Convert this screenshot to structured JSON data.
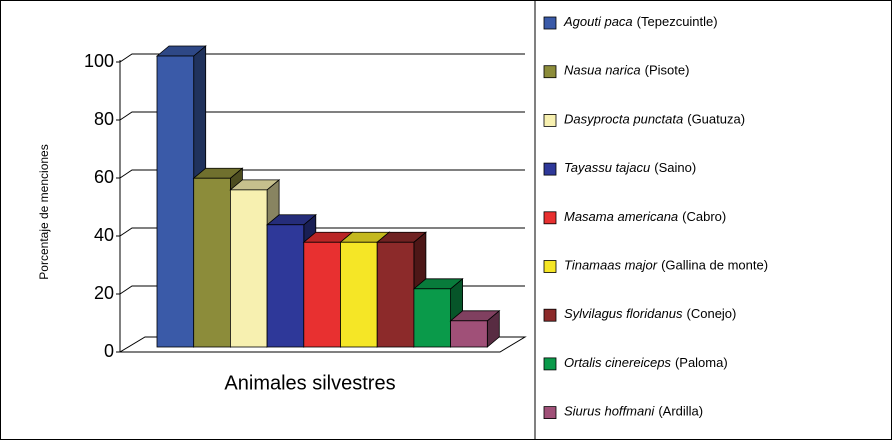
{
  "chart_data": {
    "type": "bar3d",
    "x_label": "Animales silvestres",
    "y_label": "Porcentaje de menciones",
    "ylim": [
      0,
      100
    ],
    "yticks": [
      0,
      20,
      40,
      60,
      80,
      100
    ],
    "grid": true,
    "series": [
      {
        "name": "Agouti paca",
        "common_name": "(Tepezcuintle)",
        "color": "#3a5aa8",
        "values": [
          100
        ]
      },
      {
        "name": "Nasua narica",
        "common_name": "(Pisote)",
        "color": "#8c8c3a",
        "values": [
          58
        ]
      },
      {
        "name": "Dasyprocta punctata",
        "common_name": "(Guatuza)",
        "color": "#f7f0b0",
        "values": [
          54
        ]
      },
      {
        "name": "Tayassu tajacu",
        "common_name": "(Saino)",
        "color": "#2e3899",
        "values": [
          42
        ]
      },
      {
        "name": "Masama americana",
        "common_name": "(Cabro)",
        "color": "#e83030",
        "values": [
          36
        ]
      },
      {
        "name": "Tinamaas major",
        "common_name": "(Gallina de monte)",
        "color": "#f5e626",
        "values": [
          36
        ]
      },
      {
        "name": "Sylvilagus floridanus",
        "common_name": "(Conejo)",
        "color": "#8c2a2a",
        "values": [
          36
        ]
      },
      {
        "name": "Ortalis cinereiceps",
        "common_name": "(Paloma)",
        "color": "#0a9a4a",
        "values": [
          20
        ]
      },
      {
        "name": "Siurus hoffmani",
        "common_name": "(Ardilla)",
        "color": "#a05078",
        "values": [
          9
        ]
      }
    ]
  }
}
